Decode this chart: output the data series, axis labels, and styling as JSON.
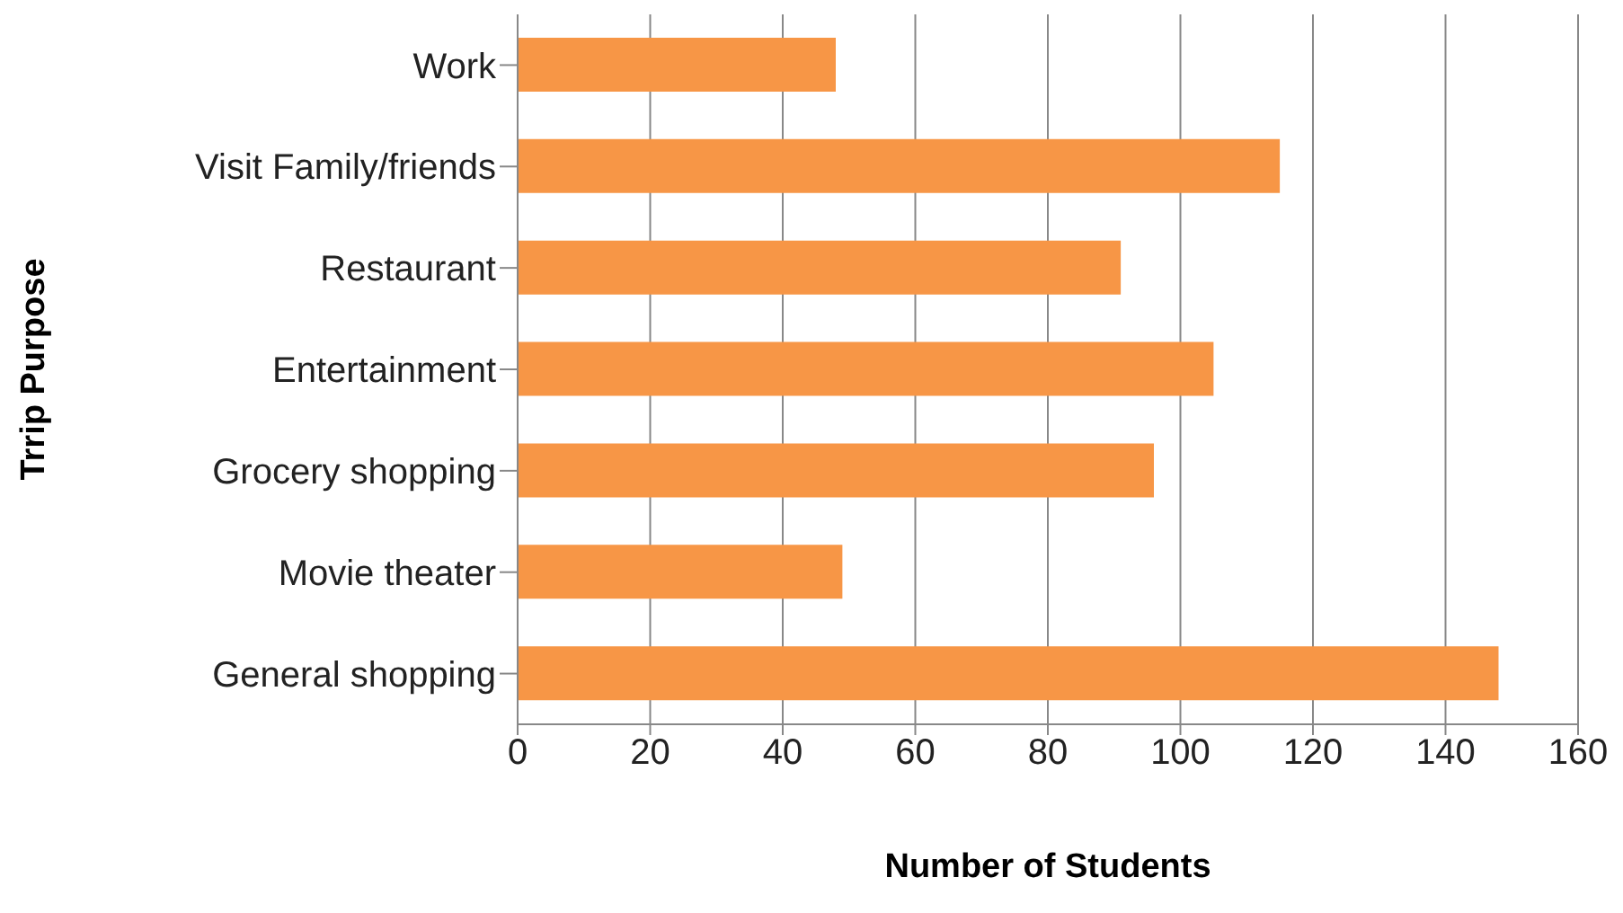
{
  "chart_data": {
    "type": "bar",
    "orientation": "horizontal",
    "xlabel": "Number of Students",
    "ylabel": "Trrip Purpose",
    "categories": [
      "Work",
      "Visit Family/friends",
      "Restaurant",
      "Entertainment",
      "Grocery shopping",
      "Movie theater",
      "General shopping"
    ],
    "values": [
      48,
      115,
      91,
      105,
      96,
      49,
      148
    ],
    "color": "#f79646",
    "xlim": [
      0,
      160
    ],
    "xticks": [
      0,
      20,
      40,
      60,
      80,
      100,
      120,
      140,
      160
    ],
    "grid": "x"
  }
}
